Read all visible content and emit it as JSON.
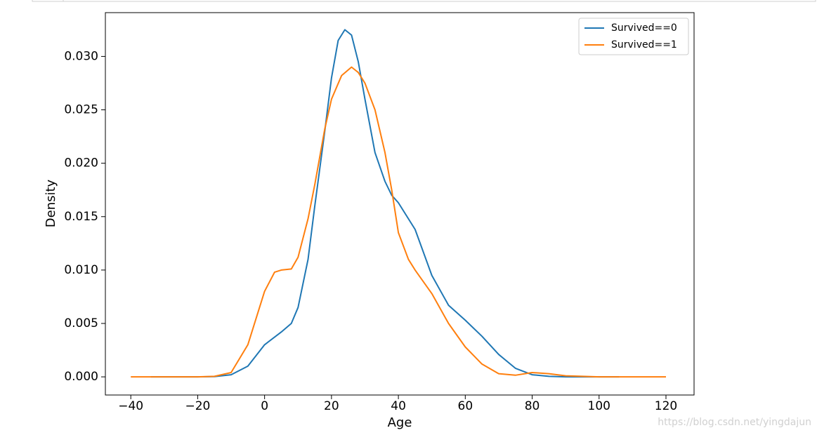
{
  "chart_data": {
    "type": "line",
    "xlabel": "Age",
    "ylabel": "Density",
    "xlim": [
      -47.6,
      128.4
    ],
    "ylim": [
      -0.0017,
      0.0341
    ],
    "xticks": [
      {
        "value": -40,
        "label": "−40"
      },
      {
        "value": -20,
        "label": "−20"
      },
      0,
      20,
      40,
      60,
      80,
      100,
      120
    ],
    "yticks": [
      {
        "value": 0,
        "label": "0.000"
      },
      {
        "value": 0.005,
        "label": "0.005"
      },
      {
        "value": 0.01,
        "label": "0.010"
      },
      {
        "value": 0.015,
        "label": "0.015"
      },
      {
        "value": 0.02,
        "label": "0.020"
      },
      {
        "value": 0.025,
        "label": "0.025"
      },
      {
        "value": 0.03,
        "label": "0.030"
      }
    ],
    "legend": "upper right",
    "series": [
      {
        "name": "Survived==0",
        "color": "#1f77b4",
        "x": [
          -34,
          -20,
          -15,
          -10,
          -5,
          0,
          5,
          8,
          10,
          13,
          15,
          18,
          20,
          22,
          24,
          26,
          28,
          30,
          33,
          36,
          38,
          40,
          45,
          50,
          55,
          60,
          65,
          70,
          75,
          80,
          85,
          90,
          106
        ],
        "values": [
          0,
          0,
          3e-05,
          0.0002,
          0.001,
          0.003,
          0.0042,
          0.005,
          0.0065,
          0.011,
          0.016,
          0.023,
          0.028,
          0.0315,
          0.0325,
          0.032,
          0.0295,
          0.026,
          0.021,
          0.0183,
          0.017,
          0.0163,
          0.0138,
          0.0095,
          0.0067,
          0.0053,
          0.0038,
          0.0021,
          0.0008,
          0.0002,
          5e-05,
          0,
          0
        ]
      },
      {
        "name": "Survived==1",
        "color": "#ff7f0e",
        "x": [
          -40,
          -20,
          -15,
          -10,
          -5,
          0,
          3,
          5,
          8,
          10,
          13,
          15,
          18,
          20,
          23,
          26,
          28,
          30,
          33,
          36,
          38,
          40,
          43,
          45,
          50,
          55,
          60,
          65,
          70,
          75,
          80,
          85,
          90,
          100,
          120
        ],
        "values": [
          0,
          0,
          5e-05,
          0.0004,
          0.003,
          0.008,
          0.0098,
          0.01,
          0.0101,
          0.0112,
          0.0148,
          0.018,
          0.0232,
          0.026,
          0.0282,
          0.029,
          0.0285,
          0.0275,
          0.025,
          0.021,
          0.0175,
          0.0135,
          0.011,
          0.01,
          0.0078,
          0.005,
          0.0028,
          0.0012,
          0.0003,
          0.00015,
          0.0004,
          0.0003,
          0.0001,
          0,
          0
        ]
      }
    ]
  },
  "watermark": "https://blog.csdn.net/yingdajun"
}
